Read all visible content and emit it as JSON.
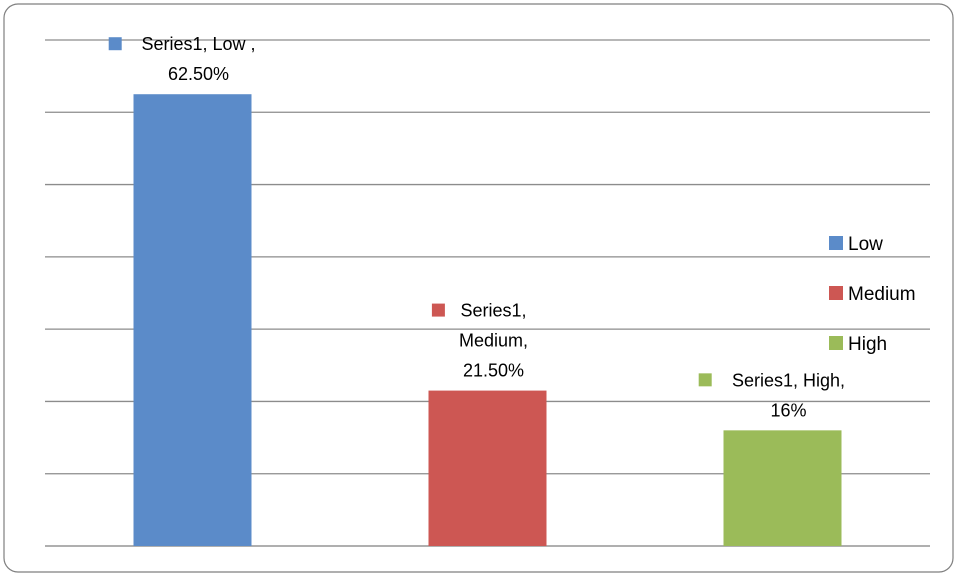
{
  "chart_data": {
    "type": "bar",
    "categories": [
      "Low",
      "Medium",
      "High"
    ],
    "series": [
      {
        "values": [
          62.5,
          21.5,
          16
        ]
      }
    ],
    "colors": [
      "#5B8BC9",
      "#CD5753",
      "#9BBB59"
    ],
    "data_labels": [
      [
        "Series1, Low ,",
        "62.50%"
      ],
      [
        "Series1,",
        "Medium,",
        "21.50%"
      ],
      [
        "Series1, High,",
        "16%"
      ]
    ],
    "legend": {
      "position": "right",
      "entries": [
        "Low",
        "Medium",
        "High"
      ]
    },
    "ylim": [
      0,
      70
    ],
    "gridline_step": 10,
    "grid": true,
    "title": "",
    "xlabel": "",
    "ylabel": ""
  }
}
